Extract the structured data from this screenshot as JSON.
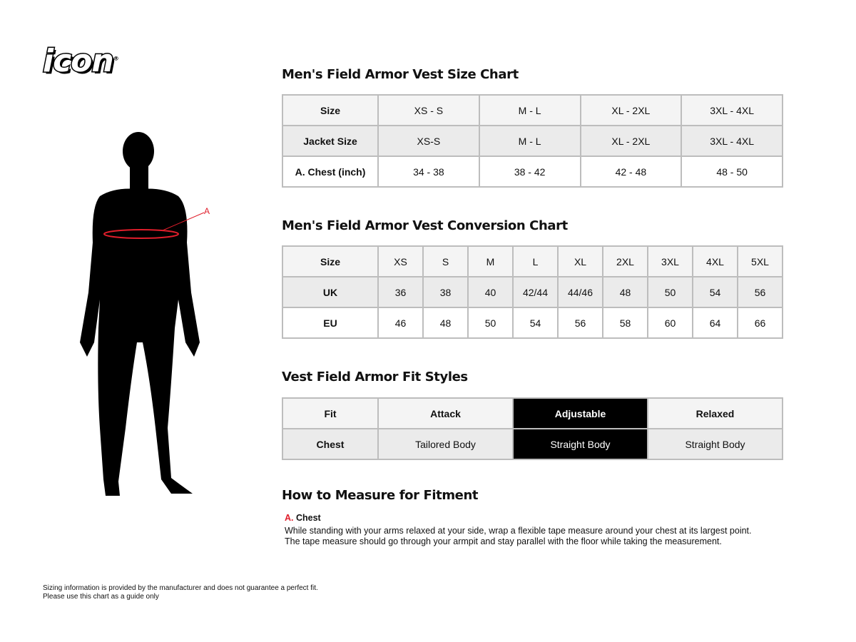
{
  "brand": {
    "logo": "icon",
    "trademark": "®"
  },
  "figure": {
    "marker_label": "A",
    "accent": "#e01e2b"
  },
  "size_chart": {
    "title": "Men's Field Armor Vest Size Chart",
    "rows": [
      [
        "Size",
        "XS - S",
        "M - L",
        "XL - 2XL",
        "3XL - 4XL"
      ],
      [
        "Jacket Size",
        "XS-S",
        "M - L",
        "XL - 2XL",
        "3XL - 4XL"
      ],
      [
        "A. Chest (inch)",
        "34 - 38",
        "38 - 42",
        "42 - 48",
        "48 - 50"
      ]
    ]
  },
  "conversion_chart": {
    "title": "Men's Field Armor Vest Conversion Chart",
    "rows": [
      [
        "Size",
        "XS",
        "S",
        "M",
        "L",
        "XL",
        "2XL",
        "3XL",
        "4XL",
        "5XL"
      ],
      [
        "UK",
        "36",
        "38",
        "40",
        "42/44",
        "44/46",
        "48",
        "50",
        "54",
        "56"
      ],
      [
        "EU",
        "46",
        "48",
        "50",
        "54",
        "56",
        "58",
        "60",
        "64",
        "66"
      ]
    ]
  },
  "fit_styles": {
    "title": "Vest Field Armor Fit Styles",
    "highlighted": "Adjustable",
    "rows": [
      [
        "Fit",
        "Attack",
        "Adjustable",
        "Relaxed"
      ],
      [
        "Chest",
        "Tailored Body",
        "Straight Body",
        "Straight Body"
      ]
    ]
  },
  "measure": {
    "title": "How to Measure for Fitment",
    "letter": "A.",
    "label": "Chest",
    "line1": "While standing with your arms relaxed at your side, wrap a flexible tape measure around your chest at its largest point.",
    "line2": "The tape measure should go through your armpit and stay parallel with the floor while taking the measurement."
  },
  "footer": {
    "line1": "Sizing information is provided by the manufacturer and does not guarantee a perfect fit.",
    "line2": "Please use this chart as a guide only"
  }
}
